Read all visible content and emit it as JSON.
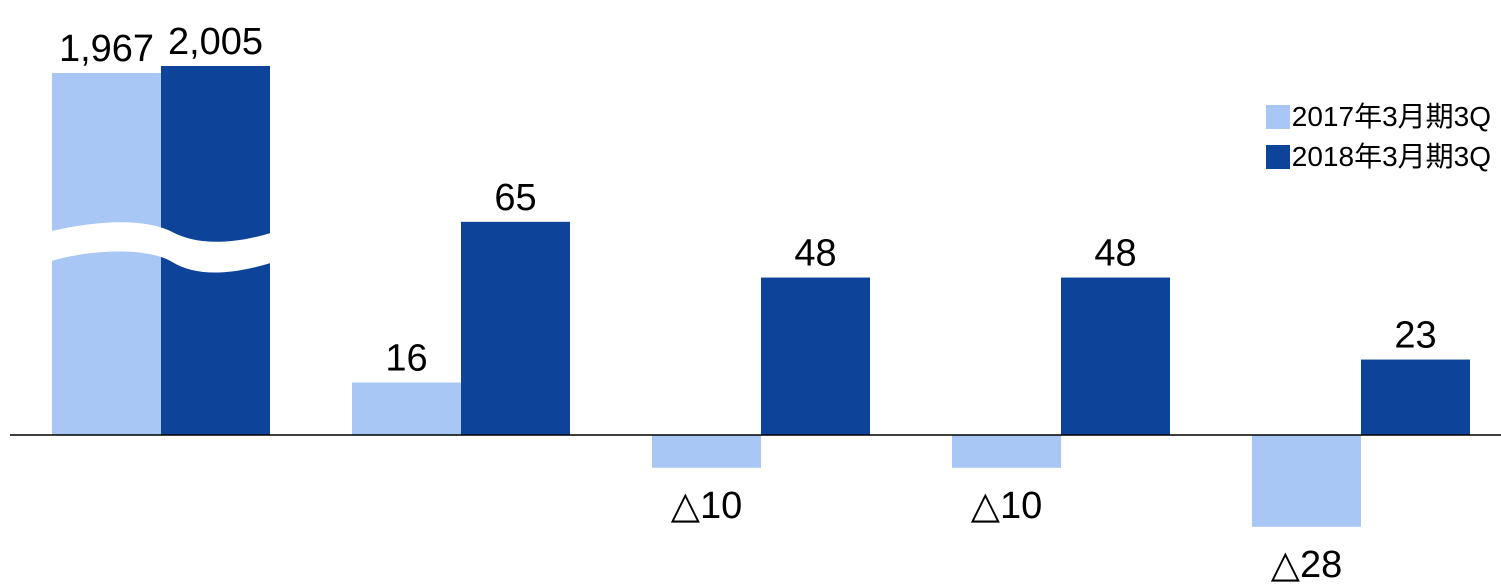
{
  "chart_data": {
    "type": "bar",
    "categories": [
      "",
      "",
      "",
      "",
      ""
    ],
    "series": [
      {
        "name": "2017年3月期3Q",
        "color": "#a9c7f5",
        "values": [
          1967,
          16,
          -10,
          -10,
          -28
        ],
        "labels": [
          "1,967",
          "16",
          "△10",
          "△10",
          "△28"
        ]
      },
      {
        "name": "2018年3月期3Q",
        "color": "#0d4499",
        "values": [
          2005,
          65,
          48,
          48,
          23
        ],
        "labels": [
          "2,005",
          "65",
          "48",
          "48",
          "23"
        ]
      }
    ],
    "axis_break": {
      "category_index": 0,
      "style": "wave"
    },
    "legend_position": "top-right",
    "grid": false,
    "title": "",
    "xlabel": "",
    "ylabel": ""
  }
}
